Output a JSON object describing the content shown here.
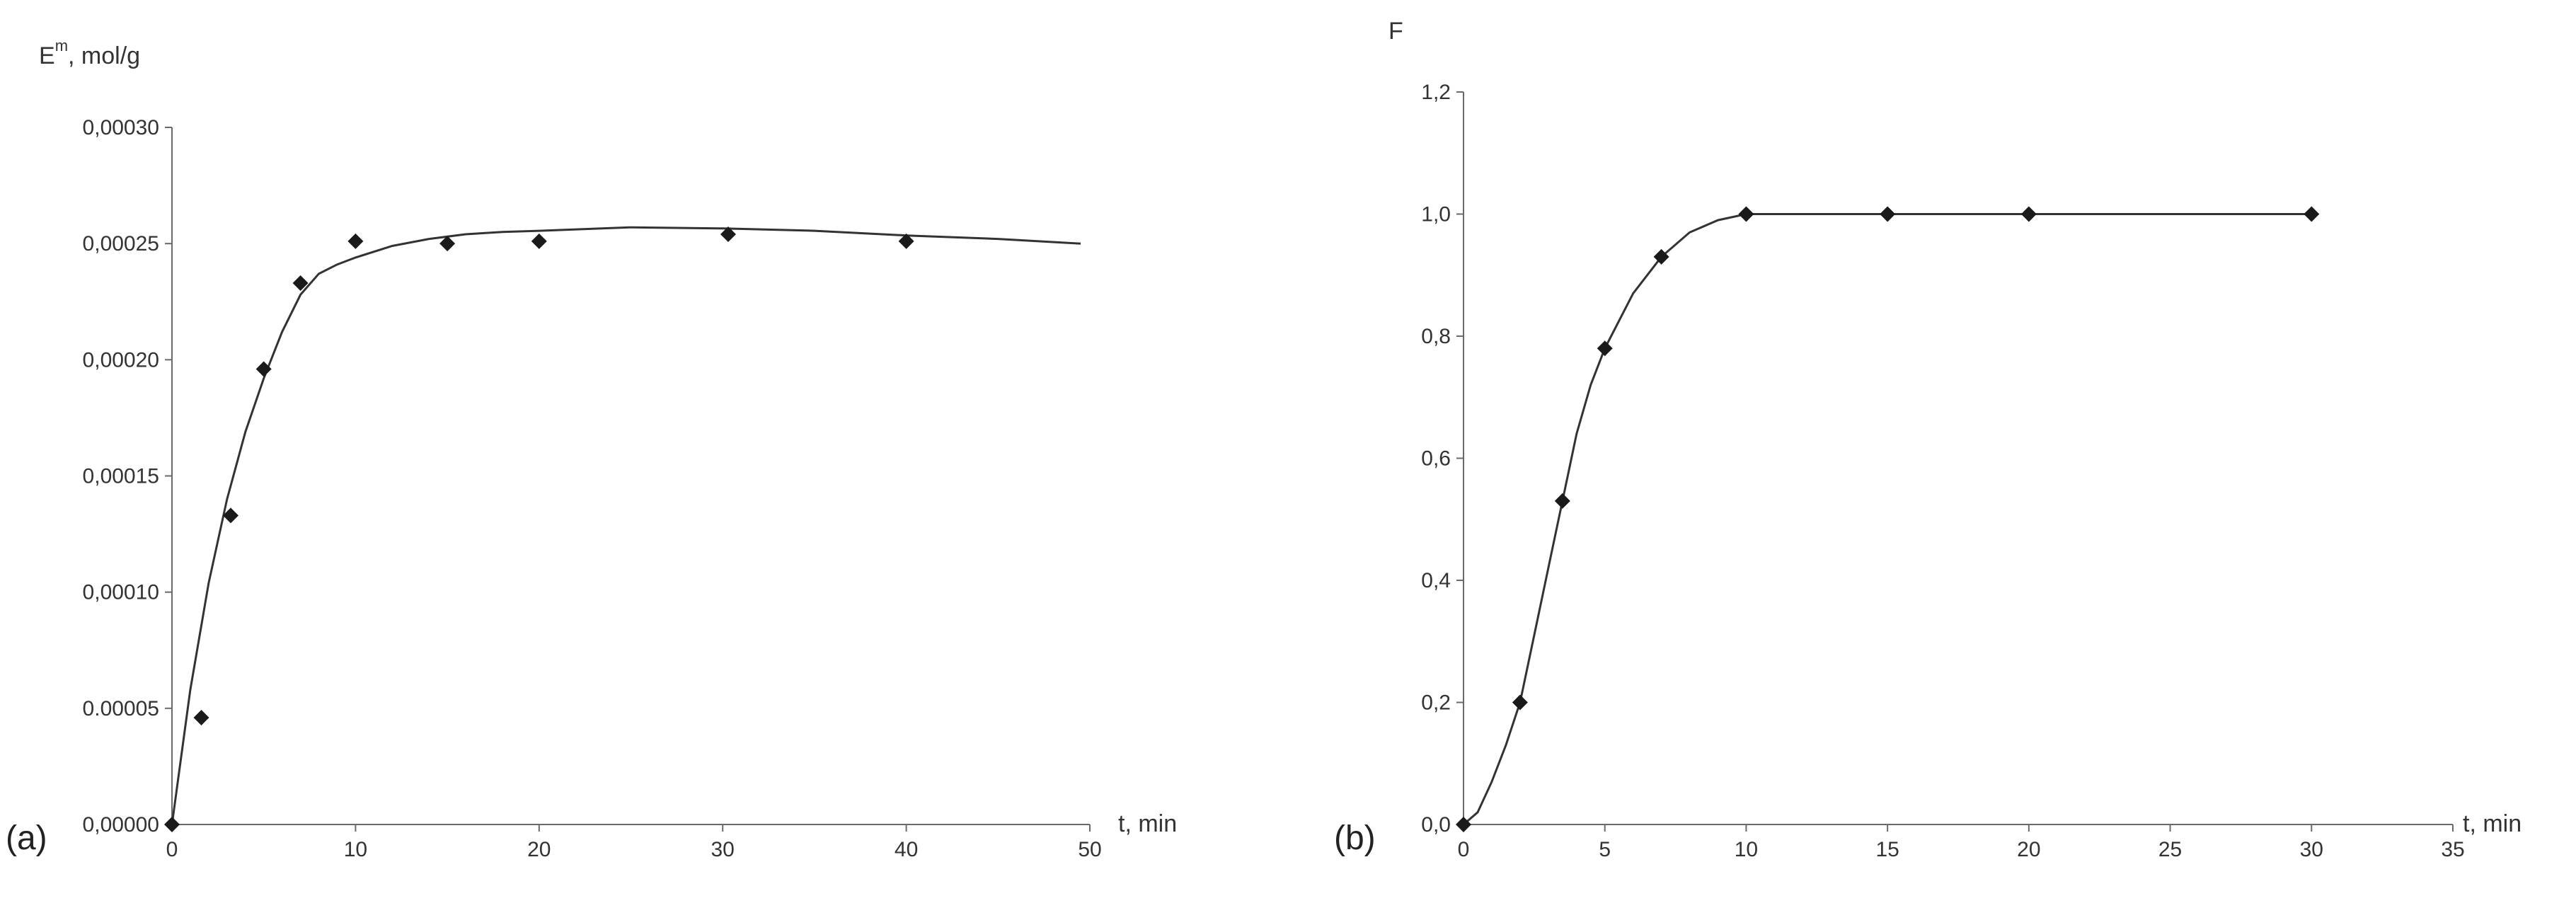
{
  "chart_data": [
    {
      "type": "scatter",
      "panel_label": "(a)",
      "ylabel_main": "E",
      "ylabel_sup": "m",
      "ylabel_unit": ",  mol/g",
      "xlabel": "t,  min",
      "xlim": [
        0,
        50
      ],
      "ylim": [
        0,
        0.0003
      ],
      "x_ticks": [
        0,
        10,
        20,
        30,
        40,
        50
      ],
      "x_tick_labels": [
        "0",
        "10",
        "20",
        "30",
        "40",
        "50"
      ],
      "y_ticks": [
        0,
        5e-05,
        0.0001,
        0.00015,
        0.0002,
        0.00025,
        0.0003
      ],
      "y_tick_labels": [
        "0,00000",
        "0.00005",
        "0,00010",
        "0,00015",
        "0,00020",
        "0,00025",
        "0,00030"
      ],
      "grid": false,
      "series": [
        {
          "kind": "points",
          "x": [
            0,
            1.6,
            3.2,
            5,
            7,
            10,
            15,
            20,
            30.3,
            40
          ],
          "y": [
            0,
            4.6e-05,
            0.000133,
            0.000196,
            0.000233,
            0.000251,
            0.00025,
            0.000251,
            0.000254,
            0.000251
          ]
        },
        {
          "kind": "fit-line",
          "x": [
            0,
            1,
            2,
            3,
            4,
            5,
            6,
            7,
            8,
            9,
            10,
            12,
            14,
            16,
            18,
            20,
            25,
            30,
            35,
            40,
            45,
            49.5
          ],
          "y": [
            0,
            5.8e-05,
            0.000104,
            0.00014,
            0.000169,
            0.000192,
            0.000212,
            0.000228,
            0.000237,
            0.000241,
            0.000244,
            0.000249,
            0.000252,
            0.000254,
            0.000255,
            0.0002555,
            0.000257,
            0.0002565,
            0.0002555,
            0.0002535,
            0.000252,
            0.00025
          ]
        }
      ]
    },
    {
      "type": "scatter",
      "panel_label": "(b)",
      "ylabel": "F",
      "xlabel": "t,  min",
      "xlim": [
        0,
        35
      ],
      "ylim": [
        0,
        1.2
      ],
      "x_ticks": [
        0,
        5,
        10,
        15,
        20,
        25,
        30,
        35
      ],
      "x_tick_labels": [
        "0",
        "5",
        "10",
        "15",
        "20",
        "25",
        "30",
        "35"
      ],
      "y_ticks": [
        0,
        0.2,
        0.4,
        0.6,
        0.8,
        1.0,
        1.2
      ],
      "y_tick_labels": [
        "0,0",
        "0,2",
        "0,4",
        "0,6",
        "0,8",
        "1,0",
        "1,2"
      ],
      "grid": false,
      "series": [
        {
          "kind": "points",
          "x": [
            0,
            2,
            3.5,
            5,
            7,
            10,
            15,
            20,
            30
          ],
          "y": [
            0,
            0.2,
            0.53,
            0.78,
            0.93,
            1.0,
            1.0,
            1.0,
            1.0
          ]
        },
        {
          "kind": "fit-line",
          "x": [
            0,
            0.5,
            1,
            1.5,
            2,
            2.5,
            3,
            3.5,
            4,
            4.5,
            5,
            6,
            7,
            8,
            9,
            10,
            11,
            12,
            15,
            20,
            25,
            30
          ],
          "y": [
            0,
            0.02,
            0.07,
            0.13,
            0.2,
            0.31,
            0.42,
            0.53,
            0.64,
            0.72,
            0.78,
            0.87,
            0.93,
            0.97,
            0.99,
            1.0,
            1.0,
            1.0,
            1.0,
            1.0,
            1.0,
            1.0
          ]
        }
      ]
    }
  ]
}
